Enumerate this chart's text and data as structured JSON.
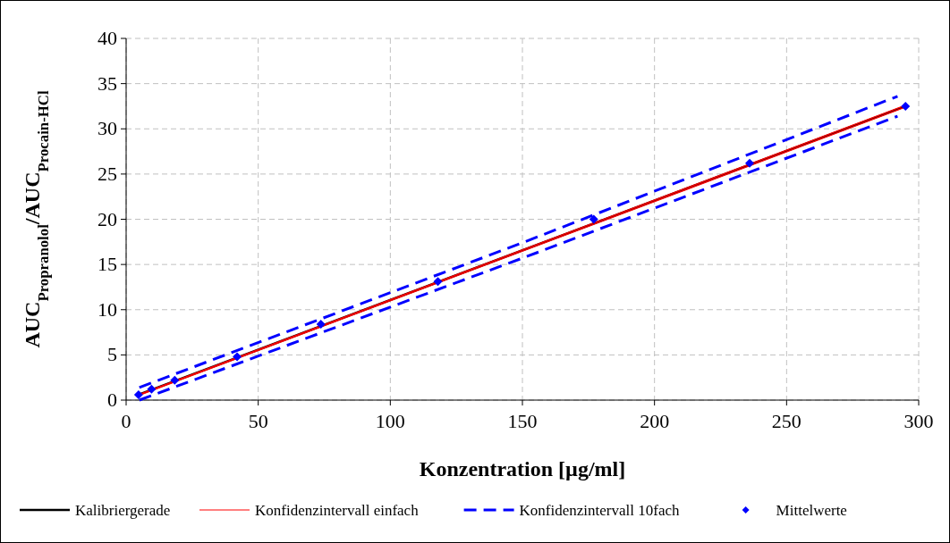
{
  "chart_data": {
    "type": "line",
    "xlabel": "Konzentration [µg/ml]",
    "ylabel": "AUC$_{Propranolol}$/AUC$_{Procain-HCl}$",
    "xlim": [
      0,
      300
    ],
    "xticks": [
      0,
      50,
      100,
      150,
      200,
      250,
      300
    ],
    "ylim": [
      0,
      40
    ],
    "yticks": [
      0,
      5,
      10,
      15,
      20,
      25,
      30,
      35,
      40
    ],
    "grid": true,
    "legend": "bottom",
    "series": [
      {
        "name": "Kalibriergerade",
        "type": "line",
        "color": "#000000",
        "line_style": "solid",
        "x": [
          4.7,
          295
        ],
        "values": [
          0.6,
          32.5
        ]
      },
      {
        "name": "Konfidenzintervall einfach",
        "type": "line",
        "color": "#ff0000",
        "line_style": "solid",
        "x": [
          4.7,
          295
        ],
        "values": [
          0.6,
          32.6
        ]
      },
      {
        "type": "line",
        "color": "#ff0000",
        "line_style": "solid",
        "x": [
          4.7,
          295
        ],
        "values": [
          0.5,
          32.4
        ]
      },
      {
        "name": "Konfidenzintervall 10fach",
        "type": "line",
        "color": "#0000ff",
        "line_style": "dashed",
        "x": [
          5,
          150,
          292
        ],
        "values": [
          1.4,
          17.4,
          33.6
        ]
      },
      {
        "type": "line",
        "color": "#0000ff",
        "line_style": "dashed",
        "x": [
          5,
          150,
          292
        ],
        "values": [
          0.0,
          15.7,
          31.4
        ]
      },
      {
        "name": "Mittelwerte",
        "type": "scatter",
        "color": "#0000ff",
        "marker": "diamond",
        "x": [
          4.7,
          9.6,
          18.4,
          42,
          73.7,
          118,
          177,
          236,
          295
        ],
        "values": [
          0.6,
          1.2,
          2.2,
          4.8,
          8.4,
          13.1,
          20.0,
          26.2,
          32.5
        ]
      }
    ]
  }
}
